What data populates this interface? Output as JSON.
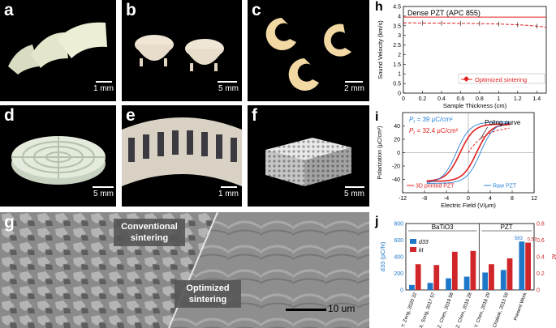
{
  "panels": {
    "a": {
      "label": "a",
      "scale": "1 mm"
    },
    "b": {
      "label": "b",
      "scale": "5 mm"
    },
    "c": {
      "label": "c",
      "scale": "2 mm"
    },
    "d": {
      "label": "d",
      "scale": "5 mm"
    },
    "e": {
      "label": "e",
      "scale": "1 mm"
    },
    "f": {
      "label": "f",
      "scale": "5 mm"
    },
    "g": {
      "label": "g",
      "left_caption": [
        "Conventional",
        "sintering"
      ],
      "right_caption": [
        "Optimized",
        "sintering"
      ],
      "scale": "10 um"
    }
  },
  "chart_data": [
    {
      "panel": "h",
      "type": "line",
      "title": "Dense PZT (APC 855)",
      "xlabel": "Sample Thickness (cm)",
      "ylabel": "Sound Velocity (km/s)",
      "xlim": [
        0,
        1.5
      ],
      "ylim": [
        0,
        4.5
      ],
      "xticks": [
        "0",
        "0.2",
        "0.4",
        "0.6",
        "0.8",
        "1",
        "1.2",
        "1.4"
      ],
      "yticks": [
        "0",
        "0.5",
        "1",
        "1.5",
        "2",
        "2.5",
        "3",
        "3.5",
        "4",
        "4.5"
      ],
      "reference_line": 3.95,
      "legend": "Optimized sintering",
      "legend_position": "bottom-right",
      "series": [
        {
          "name": "Optimized sintering",
          "color": "#e0201f",
          "x": [
            0,
            0.1,
            0.2,
            0.3,
            0.4,
            0.5,
            0.6,
            0.7,
            0.8,
            0.9,
            1.0,
            1.1,
            1.2,
            1.3,
            1.4,
            1.5
          ],
          "y": [
            3.65,
            3.65,
            3.64,
            3.64,
            3.63,
            3.63,
            3.62,
            3.62,
            3.61,
            3.6,
            3.59,
            3.57,
            3.55,
            3.52,
            3.48,
            3.42
          ]
        }
      ]
    },
    {
      "panel": "i",
      "type": "line",
      "xlabel": "Electric Field (V/μm)",
      "ylabel": "Polarization (μC/cm²)",
      "xlim": [
        -12,
        12
      ],
      "ylim": [
        -60,
        60
      ],
      "xticks": [
        "-12",
        "-8",
        "-4",
        "0",
        "4",
        "8",
        "12"
      ],
      "yticks": [
        "-40",
        "-20",
        "0",
        "20",
        "40"
      ],
      "annotations": {
        "pr_raw": {
          "italic": "P",
          "sub": "r",
          "text": " = 39 μC/cm²",
          "color": "#2a83d8"
        },
        "pr_printed": {
          "italic": "P",
          "sub": "r",
          "text": " = 32.4 μC/cm²",
          "color": "#e0201f"
        },
        "poling": "Poling curve"
      },
      "legend": [
        "3D printed PZT",
        "Raw PZT"
      ],
      "legend_position": "bottom",
      "series": [
        {
          "name": "3D printed PZT",
          "color": "#e0201f",
          "coercive": 1.5,
          "pr": 32.4,
          "ps": 43,
          "emax": 7.5
        },
        {
          "name": "Raw PZT",
          "color": "#2a83d8",
          "coercive": 2.2,
          "pr": 39,
          "ps": 46,
          "emax": 7.5
        }
      ]
    },
    {
      "panel": "j",
      "type": "bar",
      "ylabel_left": "d33 (pC/N)",
      "ylabel_right": "kt",
      "ylim_left": [
        0,
        800
      ],
      "ylim_right": [
        0,
        0.8
      ],
      "yticks_left": [
        "0",
        "200",
        "400",
        "600",
        "800"
      ],
      "yticks_right": [
        "0",
        "0.2",
        "0.4",
        "0.6",
        "0.8"
      ],
      "groups": [
        "BaTiO3",
        "PZT"
      ],
      "group_split_after": 4,
      "categories": [
        "Y. Zeng, 2020",
        "X. Song, 2017",
        "Z. Chen, 2019",
        "Z. Chen, 2016",
        "Y. Chen, 2018",
        "H. Chabok, 2013",
        "Present Work"
      ],
      "refs": [
        "32",
        "57",
        "58",
        "28",
        "29",
        "59",
        ""
      ],
      "legend": [
        "d33",
        "kt"
      ],
      "legend_position": "top-left",
      "series": [
        {
          "name": "d33",
          "color": "#1f77c7",
          "axis": "left",
          "values": [
            60,
            85,
            140,
            160,
            210,
            240,
            583
          ]
        },
        {
          "name": "kt",
          "color": "#d0262a",
          "axis": "right",
          "values": [
            0.31,
            0.3,
            0.46,
            0.47,
            0.31,
            0.38,
            0.57
          ]
        }
      ],
      "data_labels": {
        "d33": "583",
        "kt": "0.57"
      }
    }
  ]
}
